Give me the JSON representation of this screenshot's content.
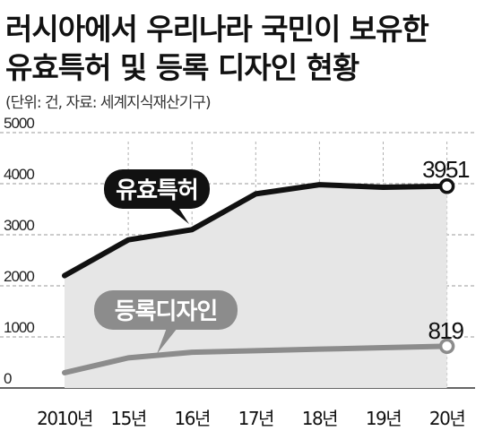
{
  "chart_data": {
    "type": "line",
    "title_line1": "러시아에서 우리나라 국민이 보유한",
    "title_line2": "유효특허 및 등록 디자인 현황",
    "subtitle": "(단위: 건, 자료: 세계지식재산기구)",
    "categories": [
      "2010년",
      "15년",
      "16년",
      "17년",
      "18년",
      "19년",
      "20년"
    ],
    "yticks": [
      "5000",
      "4000",
      "3000",
      "2000",
      "1000",
      "0"
    ],
    "ylim": [
      0,
      5000
    ],
    "grid": true,
    "series": [
      {
        "name": "유효특허",
        "values": [
          2200,
          2900,
          3100,
          3800,
          3980,
          3930,
          3951
        ],
        "color": "#111111",
        "end_label": "3951"
      },
      {
        "name": "등록디자인",
        "values": [
          300,
          590,
          700,
          730,
          760,
          790,
          819
        ],
        "color": "#8c8c8c",
        "end_label": "819"
      }
    ]
  }
}
